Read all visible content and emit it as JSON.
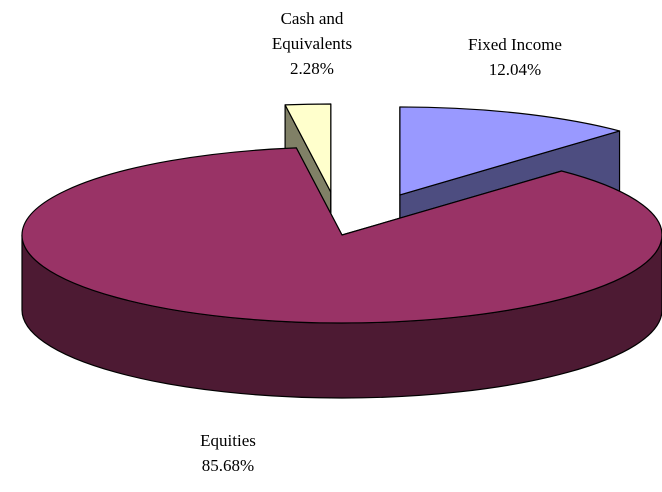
{
  "chart_data": {
    "type": "pie",
    "categories": [
      "Fixed Income",
      "Equities",
      "Cash and Equivalents"
    ],
    "values": [
      12.04,
      85.68,
      2.28
    ],
    "value_labels": [
      "12.04%",
      "85.68%",
      "2.28%"
    ],
    "colors": [
      "#9999ff",
      "#993366",
      "#ffffcc"
    ],
    "three_d": true
  }
}
